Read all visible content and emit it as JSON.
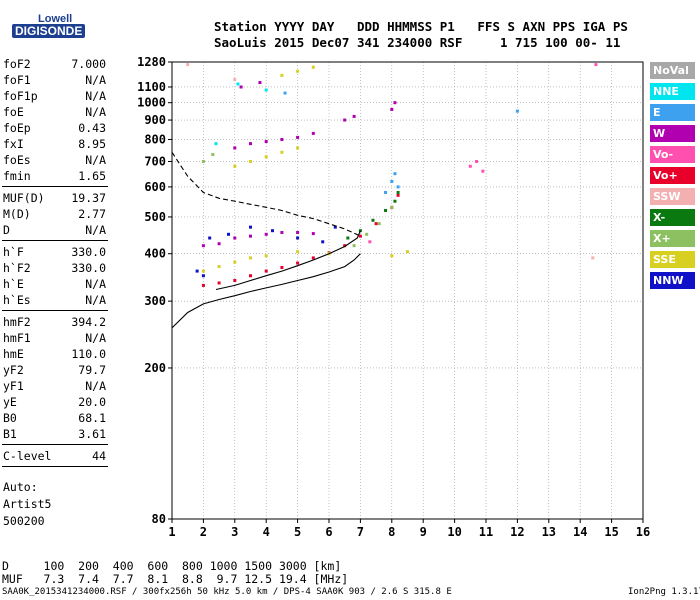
{
  "logo": {
    "line1": "Lowell",
    "line2": "DIGISONDE"
  },
  "header": {
    "row1": "Station YYYY DAY   DDD HHMMSS P1   FFS S AXN PPS IGA PS",
    "row2": "SaoLuis 2015 Dec07 341 234000 RSF     1 715 100 00- 11"
  },
  "params": [
    {
      "name": "foF2",
      "value": "7.000"
    },
    {
      "name": "foF1",
      "value": "N/A"
    },
    {
      "name": "foF1p",
      "value": "N/A"
    },
    {
      "name": "foE",
      "value": "N/A"
    },
    {
      "name": "foEp",
      "value": "0.43"
    },
    {
      "name": "fxI",
      "value": "8.95"
    },
    {
      "name": "foEs",
      "value": "N/A"
    },
    {
      "name": "fmin",
      "value": "1.65"
    },
    {
      "name": "MUF(D)",
      "value": "19.37"
    },
    {
      "name": "M(D)",
      "value": "2.77"
    },
    {
      "name": "D",
      "value": "N/A"
    },
    {
      "name": "h`F",
      "value": "330.0"
    },
    {
      "name": "h`F2",
      "value": "330.0"
    },
    {
      "name": "h`E",
      "value": "N/A"
    },
    {
      "name": "h`Es",
      "value": "N/A"
    },
    {
      "name": "hmF2",
      "value": "394.2"
    },
    {
      "name": "hmF1",
      "value": "N/A"
    },
    {
      "name": "hmE",
      "value": "110.0"
    },
    {
      "name": "yF2",
      "value": "79.7"
    },
    {
      "name": "yF1",
      "value": "N/A"
    },
    {
      "name": "yE",
      "value": "20.0"
    },
    {
      "name": "B0",
      "value": "68.1"
    },
    {
      "name": "B1",
      "value": "3.61"
    },
    {
      "name": "C-level",
      "value": "44"
    }
  ],
  "auto": {
    "line1": "Auto:",
    "line2": "Artist5",
    "line3": "500200"
  },
  "legend": [
    {
      "label": "NoVal",
      "color": "#a8a8a8"
    },
    {
      "label": "NNE",
      "color": "#00e5ee"
    },
    {
      "label": "E",
      "color": "#3ea1f0"
    },
    {
      "label": "W",
      "color": "#b000b0"
    },
    {
      "label": "Vo-",
      "color": "#ff50b0"
    },
    {
      "label": "Vo+",
      "color": "#e8002a"
    },
    {
      "label": "SSW",
      "color": "#f4b0b0"
    },
    {
      "label": "X-",
      "color": "#0a7a10"
    },
    {
      "label": "X+",
      "color": "#8cc060"
    },
    {
      "label": "SSE",
      "color": "#d8d020"
    },
    {
      "label": "NNW",
      "color": "#1010c8"
    }
  ],
  "mufTable": {
    "dRow": "D     100  200  400  600  800 1000 1500 3000 [km]",
    "mufRow": "MUF   7.3  7.4  7.7  8.1  8.8  9.7 12.5 19.4 [MHz]"
  },
  "footer": {
    "left": "SAA0K_2015341234000.RSF / 300fx256h 50 kHz 5.0 km / DPS-4 SAA0K 903 / 2.6 S 315.8 E",
    "right": "Ion2Png 1.3.17"
  },
  "chart_data": {
    "type": "scatter",
    "title": "",
    "xlabel": "",
    "ylabel": "",
    "xlim": [
      1,
      16
    ],
    "ylim": [
      80,
      1280
    ],
    "yscale": "log",
    "xticks": [
      1,
      2,
      3,
      4,
      5,
      6,
      7,
      8,
      9,
      10,
      11,
      12,
      13,
      14,
      15,
      16
    ],
    "yticks": [
      80,
      200,
      300,
      400,
      500,
      600,
      700,
      800,
      900,
      1000,
      1100,
      1280
    ],
    "grid": true,
    "series": [
      {
        "name": "Vo+",
        "color": "#e8002a",
        "points": [
          [
            2.0,
            330
          ],
          [
            2.5,
            335
          ],
          [
            3.0,
            340
          ],
          [
            3.5,
            350
          ],
          [
            4.0,
            360
          ],
          [
            4.5,
            368
          ],
          [
            5.0,
            378
          ],
          [
            5.5,
            390
          ],
          [
            6.0,
            402
          ],
          [
            6.5,
            420
          ],
          [
            7.0,
            445
          ],
          [
            7.5,
            480
          ],
          [
            8.0,
            530
          ],
          [
            8.2,
            570
          ]
        ]
      },
      {
        "name": "W",
        "color": "#b000b0",
        "points": [
          [
            2.0,
            420
          ],
          [
            2.5,
            425
          ],
          [
            3.0,
            440
          ],
          [
            3.5,
            445
          ],
          [
            4.0,
            450
          ],
          [
            4.5,
            455
          ],
          [
            5.0,
            455
          ],
          [
            5.5,
            452
          ],
          [
            3.0,
            760
          ],
          [
            3.5,
            780
          ],
          [
            4.0,
            790
          ],
          [
            4.5,
            800
          ],
          [
            5.0,
            810
          ],
          [
            5.5,
            830
          ],
          [
            3.2,
            1100
          ],
          [
            3.8,
            1130
          ],
          [
            6.5,
            900
          ],
          [
            6.8,
            920
          ],
          [
            8.0,
            960
          ],
          [
            8.1,
            1000
          ]
        ]
      },
      {
        "name": "NNW",
        "color": "#1010c8",
        "points": [
          [
            2.2,
            440
          ],
          [
            2.8,
            450
          ],
          [
            3.5,
            470
          ],
          [
            4.2,
            460
          ],
          [
            5.0,
            440
          ],
          [
            5.8,
            430
          ],
          [
            6.2,
            470
          ],
          [
            1.8,
            360
          ],
          [
            2.0,
            350
          ]
        ]
      },
      {
        "name": "SSE",
        "color": "#d8d020",
        "points": [
          [
            2.0,
            360
          ],
          [
            2.5,
            370
          ],
          [
            3.0,
            380
          ],
          [
            3.5,
            390
          ],
          [
            4.0,
            395
          ],
          [
            5.0,
            405
          ],
          [
            6.0,
            400
          ],
          [
            8.0,
            395
          ],
          [
            8.5,
            405
          ],
          [
            3.0,
            680
          ],
          [
            3.5,
            700
          ],
          [
            4.0,
            720
          ],
          [
            4.5,
            740
          ],
          [
            5.0,
            760
          ],
          [
            4.5,
            1180
          ],
          [
            5.0,
            1210
          ],
          [
            5.5,
            1240
          ]
        ]
      },
      {
        "name": "X-",
        "color": "#0a7a10",
        "points": [
          [
            6.6,
            440
          ],
          [
            7.0,
            460
          ],
          [
            7.4,
            490
          ],
          [
            7.8,
            520
          ],
          [
            8.1,
            550
          ],
          [
            8.2,
            580
          ]
        ]
      },
      {
        "name": "X+",
        "color": "#8cc060",
        "points": [
          [
            6.8,
            420
          ],
          [
            7.2,
            450
          ],
          [
            7.6,
            480
          ],
          [
            8.0,
            530
          ],
          [
            2.0,
            700
          ],
          [
            2.3,
            730
          ]
        ]
      },
      {
        "name": "E",
        "color": "#3ea1f0",
        "points": [
          [
            7.8,
            580
          ],
          [
            8.0,
            620
          ],
          [
            8.1,
            650
          ],
          [
            8.2,
            600
          ],
          [
            4.6,
            1060
          ],
          [
            12.0,
            950
          ]
        ]
      },
      {
        "name": "Vo-",
        "color": "#ff50b0",
        "points": [
          [
            10.5,
            680
          ],
          [
            10.7,
            700
          ],
          [
            10.9,
            660
          ],
          [
            7.3,
            430
          ],
          [
            14.5,
            1260
          ]
        ]
      },
      {
        "name": "NNE",
        "color": "#00e5ee",
        "points": [
          [
            2.4,
            780
          ],
          [
            3.1,
            1120
          ],
          [
            4.0,
            1080
          ]
        ]
      },
      {
        "name": "SSW",
        "color": "#f4b0b0",
        "points": [
          [
            1.5,
            1260
          ],
          [
            3.0,
            1150
          ],
          [
            14.4,
            390
          ]
        ]
      }
    ],
    "curves": [
      {
        "style": "solid",
        "points": [
          [
            1.0,
            255
          ],
          [
            1.5,
            280
          ],
          [
            2.0,
            295
          ],
          [
            2.5,
            303
          ],
          [
            3.0,
            310
          ],
          [
            3.5,
            318
          ],
          [
            4.0,
            325
          ],
          [
            4.5,
            332
          ],
          [
            5.0,
            340
          ],
          [
            5.5,
            348
          ],
          [
            6.0,
            358
          ],
          [
            6.5,
            370
          ],
          [
            6.8,
            385
          ],
          [
            7.0,
            400
          ]
        ]
      },
      {
        "style": "solid",
        "points": [
          [
            2.4,
            322
          ],
          [
            3.0,
            330
          ],
          [
            3.5,
            340
          ],
          [
            4.0,
            350
          ],
          [
            4.5,
            360
          ],
          [
            5.0,
            372
          ],
          [
            5.5,
            385
          ],
          [
            6.0,
            400
          ],
          [
            6.5,
            418
          ],
          [
            6.9,
            440
          ],
          [
            7.0,
            460
          ]
        ]
      },
      {
        "style": "dashed",
        "points": [
          [
            1.0,
            740
          ],
          [
            1.5,
            640
          ],
          [
            2.0,
            580
          ],
          [
            2.5,
            560
          ],
          [
            3.0,
            550
          ],
          [
            3.5,
            540
          ],
          [
            4.0,
            530
          ],
          [
            4.5,
            520
          ],
          [
            5.0,
            505
          ],
          [
            5.5,
            495
          ],
          [
            6.0,
            480
          ],
          [
            6.5,
            465
          ],
          [
            7.0,
            445
          ]
        ]
      }
    ]
  }
}
